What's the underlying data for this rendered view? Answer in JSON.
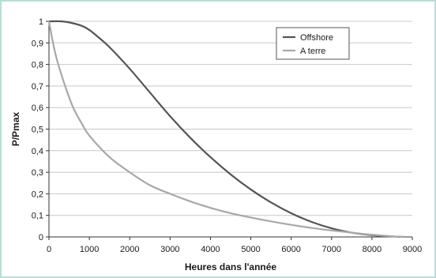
{
  "chart_data": {
    "type": "line",
    "xlabel": "Heures dans l'année",
    "ylabel": "P/Pmax",
    "xlim": [
      0,
      9000
    ],
    "ylim": [
      0,
      1
    ],
    "x_ticks": [
      "0",
      "1000",
      "2000",
      "3000",
      "4000",
      "5000",
      "6000",
      "7000",
      "8000",
      "9000"
    ],
    "y_ticks": [
      "0",
      "0,1",
      "0,2",
      "0,3",
      "0,4",
      "0,5",
      "0,6",
      "0,7",
      "0,8",
      "0,9",
      "1"
    ],
    "grid": true,
    "legend_position": "top-right",
    "series": [
      {
        "name": "Offshore",
        "color": "#555555",
        "x": [
          0,
          300,
          500,
          800,
          1000,
          1200,
          1500,
          2000,
          2500,
          3000,
          3500,
          4000,
          4500,
          5000,
          5500,
          6000,
          6500,
          7000,
          7500,
          8000,
          8500,
          8800
        ],
        "y": [
          1.0,
          1.0,
          0.995,
          0.98,
          0.96,
          0.93,
          0.88,
          0.78,
          0.67,
          0.56,
          0.46,
          0.37,
          0.29,
          0.22,
          0.16,
          0.11,
          0.07,
          0.04,
          0.02,
          0.008,
          0.002,
          0.0
        ]
      },
      {
        "name": "A terre",
        "color": "#a8a8a8",
        "x": [
          0,
          100,
          200,
          400,
          600,
          800,
          1000,
          1500,
          2000,
          2500,
          3000,
          3500,
          4000,
          4500,
          5000,
          5500,
          6000,
          6500,
          7000,
          7500,
          8000,
          8500,
          8800
        ],
        "y": [
          1.0,
          0.9,
          0.82,
          0.7,
          0.6,
          0.53,
          0.47,
          0.37,
          0.3,
          0.24,
          0.2,
          0.165,
          0.135,
          0.11,
          0.09,
          0.072,
          0.056,
          0.042,
          0.03,
          0.02,
          0.01,
          0.003,
          0.0
        ]
      }
    ]
  }
}
